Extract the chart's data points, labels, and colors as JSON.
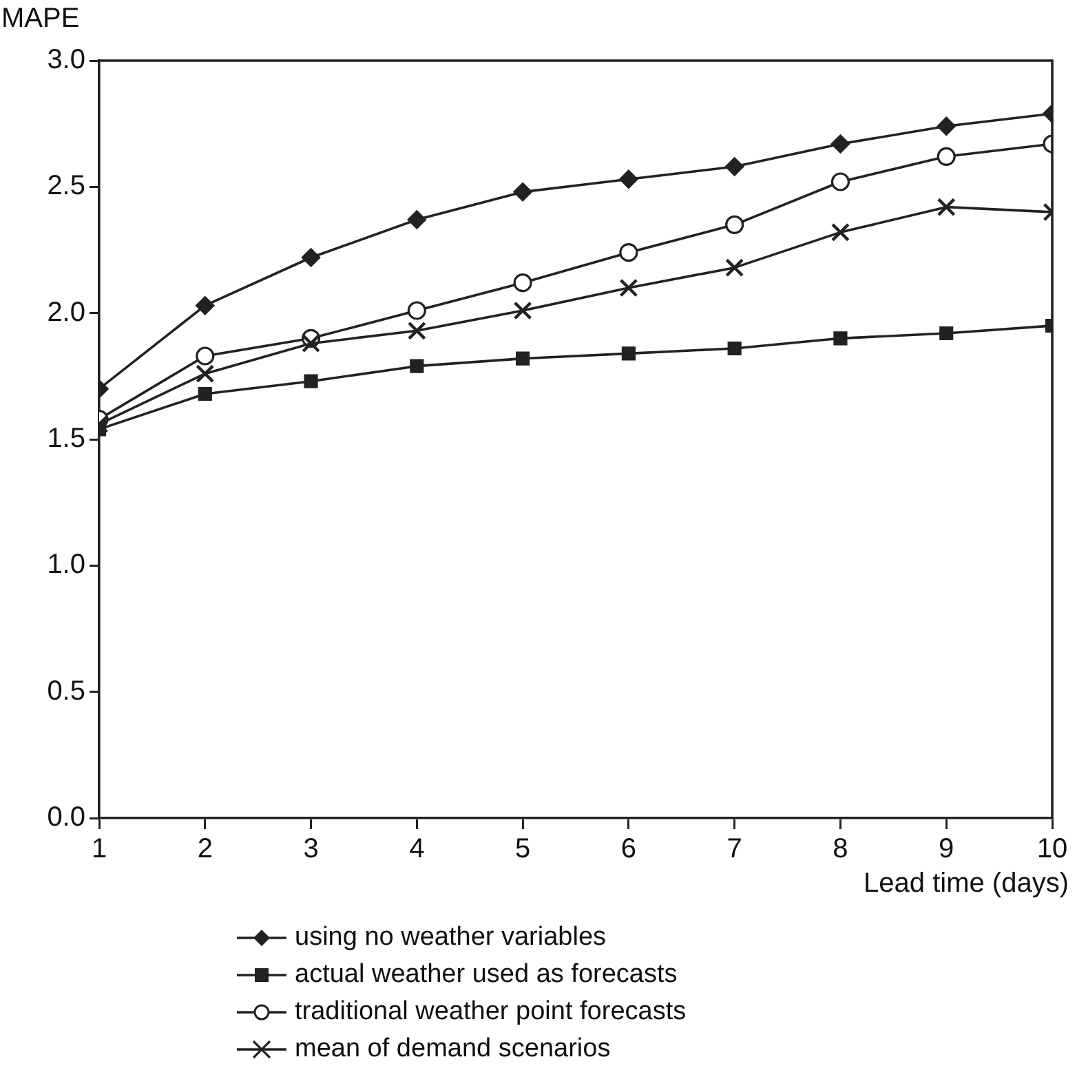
{
  "chart_data": {
    "type": "line",
    "ylabel": "MAPE",
    "xlabel": "Lead time (days)",
    "x": [
      1,
      2,
      3,
      4,
      5,
      6,
      7,
      8,
      9,
      10
    ],
    "xlim": [
      1,
      10
    ],
    "xticks": [
      1,
      2,
      3,
      4,
      5,
      6,
      7,
      8,
      9,
      10
    ],
    "ylim": [
      0,
      3
    ],
    "yticks": [
      {
        "value": 0,
        "label": "0.0"
      },
      {
        "value": 0.5,
        "label": "0.5"
      },
      {
        "value": 1,
        "label": "1.0"
      },
      {
        "value": 1.5,
        "label": "1.5"
      },
      {
        "value": 2,
        "label": "2.0"
      },
      {
        "value": 2.5,
        "label": "2.5"
      },
      {
        "value": 3,
        "label": "3.0"
      }
    ],
    "grid": false,
    "legend": "bottom",
    "line_style": "solid",
    "series": [
      {
        "name": "using no weather variables",
        "color": "#222222",
        "marker": "diamond",
        "values": [
          1.7,
          2.03,
          2.22,
          2.37,
          2.48,
          2.53,
          2.58,
          2.67,
          2.74,
          2.79
        ]
      },
      {
        "name": "actual weather used as forecasts",
        "color": "#222222",
        "marker": "square",
        "values": [
          1.54,
          1.68,
          1.73,
          1.79,
          1.82,
          1.84,
          1.86,
          1.9,
          1.92,
          1.95
        ]
      },
      {
        "name": "traditional weather point forecasts",
        "color": "#222222",
        "marker": "circle",
        "values": [
          1.58,
          1.83,
          1.9,
          2.01,
          2.12,
          2.24,
          2.35,
          2.52,
          2.62,
          2.67
        ]
      },
      {
        "name": "mean of demand scenarios",
        "color": "#222222",
        "marker": "cross",
        "values": [
          1.56,
          1.76,
          1.88,
          1.93,
          2.01,
          2.1,
          2.18,
          2.32,
          2.42,
          2.4
        ]
      }
    ]
  }
}
